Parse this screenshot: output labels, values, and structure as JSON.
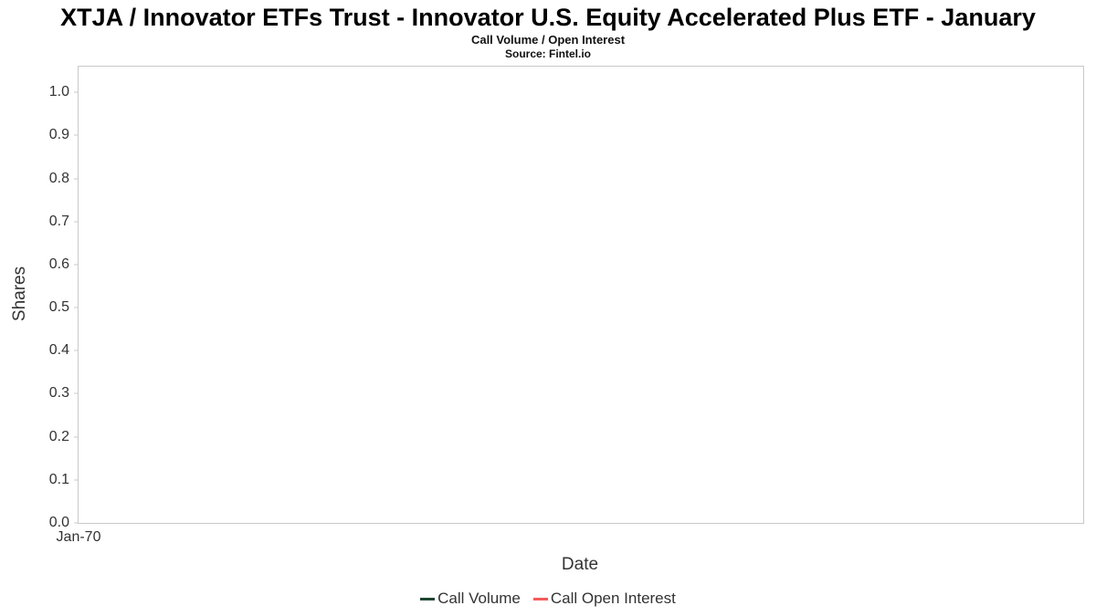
{
  "chart_data": {
    "type": "line",
    "title": "XTJA / Innovator ETFs Trust - Innovator U.S. Equity Accelerated Plus ETF - January",
    "subtitle": "Call Volume / Open Interest",
    "source": "Source: Fintel.io",
    "xlabel": "Date",
    "ylabel": "Shares",
    "x_tick_labels": [
      "Jan-70"
    ],
    "y_ticks": [
      0.0,
      0.1,
      0.2,
      0.3,
      0.4,
      0.5,
      0.6,
      0.7,
      0.8,
      0.9,
      1.0
    ],
    "ylim": [
      0,
      1.06
    ],
    "grid": false,
    "legend_position": "bottom",
    "series": [
      {
        "name": "Call Volume",
        "color": "#1d4632",
        "x": [],
        "values": []
      },
      {
        "name": "Call Open Interest",
        "color": "#f45b5b",
        "x": [],
        "values": []
      }
    ]
  }
}
